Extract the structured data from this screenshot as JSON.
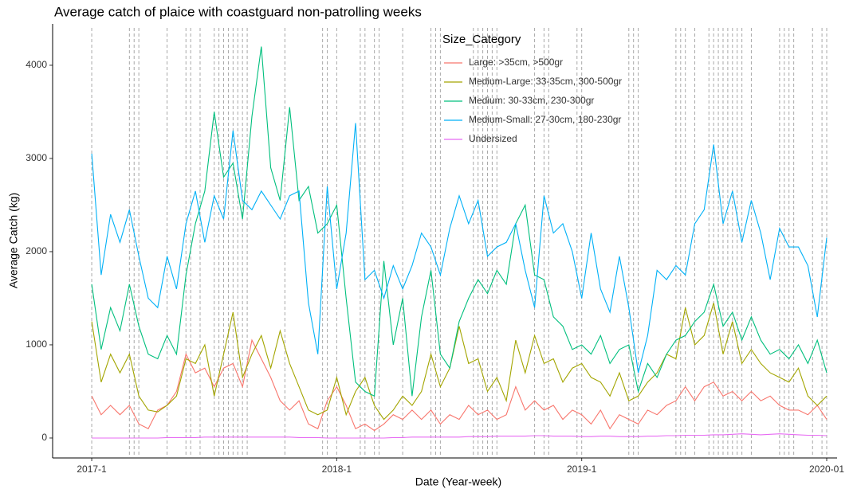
{
  "chart_data": {
    "type": "line",
    "title": "Average catch of plaice with coastguard non-patrolling weeks",
    "x_label": "Date (Year-week)",
    "y_label": "Average Catch (kg)",
    "legend_title": "Size_Category",
    "x": [
      0,
      2,
      4,
      6,
      8,
      10,
      12,
      14,
      16,
      18,
      20,
      22,
      24,
      26,
      28,
      30,
      32,
      34,
      36,
      38,
      40,
      42,
      44,
      46,
      48,
      50,
      52,
      54,
      56,
      58,
      60,
      62,
      64,
      66,
      68,
      70,
      72,
      74,
      76,
      78,
      80,
      82,
      84,
      86,
      88,
      90,
      92,
      94,
      96,
      98,
      100,
      102,
      104,
      106,
      108,
      110,
      112,
      114,
      116,
      118,
      120,
      122,
      124,
      126,
      128,
      130,
      132,
      134,
      136,
      138,
      140,
      142,
      144,
      146,
      148,
      150,
      152,
      154,
      156
    ],
    "xlim": [
      -8.3,
      158.2
    ],
    "xticks": [
      {
        "value": 0,
        "label": "2017-1"
      },
      {
        "value": 52,
        "label": "2018-1"
      },
      {
        "value": 104,
        "label": "2019-1"
      },
      {
        "value": 156,
        "label": "2020-01"
      }
    ],
    "ylim": [
      -214,
      4444
    ],
    "yticks": [
      0,
      1000,
      2000,
      3000,
      4000
    ],
    "nonpatrol_weeks": [
      0,
      8,
      9,
      10,
      16,
      20,
      21,
      23,
      26,
      27,
      28,
      29,
      30,
      31,
      32,
      33,
      41,
      49,
      50,
      52,
      57,
      58,
      60,
      61,
      66,
      72,
      73,
      74,
      81,
      82,
      83,
      84,
      85,
      86,
      94,
      96,
      97,
      103,
      104,
      114,
      115,
      116,
      124,
      125,
      126,
      128,
      131,
      132,
      133,
      134,
      135,
      136,
      137,
      138,
      140,
      146,
      147,
      148,
      149,
      153,
      155,
      156
    ],
    "series": [
      {
        "name": "Large: >35cm, >500gr",
        "color": "#F8766D",
        "values": [
          450,
          250,
          350,
          250,
          350,
          150,
          100,
          300,
          350,
          500,
          900,
          700,
          750,
          550,
          750,
          800,
          550,
          1050,
          850,
          650,
          400,
          300,
          400,
          150,
          100,
          400,
          550,
          350,
          100,
          150,
          80,
          150,
          250,
          200,
          300,
          200,
          300,
          150,
          250,
          200,
          350,
          250,
          300,
          200,
          250,
          550,
          300,
          400,
          300,
          350,
          200,
          300,
          250,
          150,
          300,
          100,
          250,
          200,
          150,
          300,
          250,
          350,
          400,
          550,
          400,
          550,
          600,
          450,
          500,
          400,
          500,
          400,
          450,
          350,
          300,
          300,
          250,
          350,
          200
        ]
      },
      {
        "name": "Medium-Large: 33-35cm, 300-500gr",
        "color": "#A3A500",
        "values": [
          1250,
          600,
          900,
          700,
          900,
          450,
          300,
          280,
          350,
          450,
          850,
          800,
          1000,
          450,
          900,
          1350,
          650,
          900,
          1100,
          750,
          1150,
          800,
          550,
          300,
          250,
          300,
          650,
          250,
          500,
          650,
          350,
          200,
          300,
          450,
          350,
          500,
          900,
          550,
          750,
          1200,
          800,
          850,
          500,
          650,
          400,
          1050,
          700,
          1100,
          800,
          850,
          600,
          750,
          800,
          650,
          600,
          450,
          700,
          400,
          450,
          600,
          700,
          900,
          850,
          1400,
          1000,
          1100,
          1450,
          900,
          1250,
          800,
          950,
          800,
          700,
          650,
          600,
          750,
          450,
          350,
          450
        ]
      },
      {
        "name": "Medium: 30-33cm, 230-300gr",
        "color": "#00BF7D",
        "values": [
          1650,
          950,
          1400,
          1150,
          1650,
          1200,
          900,
          850,
          1100,
          900,
          1750,
          2300,
          2650,
          3500,
          2800,
          2950,
          2350,
          3450,
          4200,
          2900,
          2550,
          3550,
          2550,
          2700,
          2200,
          2300,
          2500,
          1500,
          600,
          500,
          450,
          1900,
          1000,
          1500,
          450,
          1300,
          1800,
          900,
          750,
          1250,
          1500,
          1700,
          1550,
          1800,
          1650,
          2300,
          2500,
          1750,
          1700,
          1300,
          1200,
          950,
          1000,
          900,
          1100,
          800,
          950,
          1000,
          500,
          800,
          650,
          900,
          1050,
          1100,
          1250,
          1350,
          1650,
          1200,
          1350,
          1050,
          1300,
          1050,
          900,
          950,
          850,
          1000,
          800,
          1050,
          700
        ]
      },
      {
        "name": "Medium-Small: 27-30cm, 180-230gr",
        "color": "#00B0F6",
        "values": [
          3050,
          1750,
          2400,
          2100,
          2450,
          1950,
          1500,
          1400,
          1950,
          1600,
          2300,
          2650,
          2100,
          2600,
          2350,
          3300,
          2550,
          2450,
          2650,
          2500,
          2350,
          2600,
          2650,
          1450,
          900,
          2700,
          1600,
          2200,
          3380,
          1700,
          1800,
          1500,
          1850,
          1600,
          1850,
          2200,
          2050,
          1750,
          2250,
          2600,
          2300,
          2550,
          1950,
          2050,
          2100,
          2300,
          1800,
          1400,
          2600,
          2200,
          2300,
          2000,
          1500,
          2200,
          1600,
          1350,
          1950,
          1400,
          700,
          1100,
          1800,
          1700,
          1850,
          1750,
          2300,
          2450,
          3150,
          2300,
          2650,
          2100,
          2550,
          2200,
          1700,
          2250,
          2050,
          2050,
          1850,
          1300,
          2150
        ]
      },
      {
        "name": "Undersized",
        "color": "#E76BF3",
        "values": [
          0,
          0,
          0,
          0,
          0,
          0,
          0,
          0,
          5,
          5,
          5,
          5,
          10,
          10,
          10,
          10,
          10,
          10,
          10,
          10,
          10,
          10,
          5,
          5,
          5,
          0,
          0,
          0,
          0,
          0,
          0,
          0,
          5,
          5,
          10,
          10,
          10,
          10,
          10,
          10,
          15,
          15,
          15,
          20,
          20,
          20,
          20,
          25,
          25,
          20,
          20,
          20,
          15,
          15,
          20,
          20,
          15,
          15,
          15,
          20,
          20,
          25,
          25,
          30,
          30,
          30,
          35,
          35,
          40,
          45,
          40,
          35,
          40,
          45,
          40,
          35,
          30,
          30,
          25
        ]
      }
    ]
  }
}
